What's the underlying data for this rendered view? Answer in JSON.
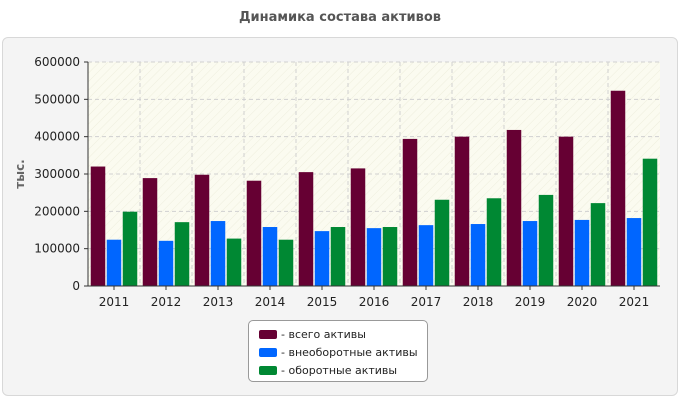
{
  "chart_data": {
    "type": "bar",
    "title": "Динамика состава активов",
    "xlabel": "",
    "ylabel": "тыс.",
    "ylim": [
      0,
      600000
    ],
    "yticks": [
      "0",
      "100000",
      "200000",
      "300000",
      "400000",
      "500000",
      "600000"
    ],
    "categories": [
      "2011",
      "2012",
      "2013",
      "2014",
      "2015",
      "2016",
      "2017",
      "2018",
      "2019",
      "2020",
      "2021"
    ],
    "series": [
      {
        "name": "- всего активы",
        "color": "#660033",
        "values": [
          320000,
          289000,
          298000,
          282000,
          305000,
          315000,
          394000,
          400000,
          418000,
          400000,
          523000
        ]
      },
      {
        "name": "- внеоборотные активы",
        "color": "#0066ff",
        "values": [
          124000,
          121000,
          174000,
          158000,
          147000,
          155000,
          163000,
          166000,
          174000,
          177000,
          182000
        ]
      },
      {
        "name": "- оборотные активы",
        "color": "#008833",
        "values": [
          199000,
          171000,
          127000,
          124000,
          158000,
          158000,
          231000,
          235000,
          244000,
          222000,
          341000
        ]
      }
    ],
    "grid": true,
    "legend_position": "bottom-center"
  }
}
